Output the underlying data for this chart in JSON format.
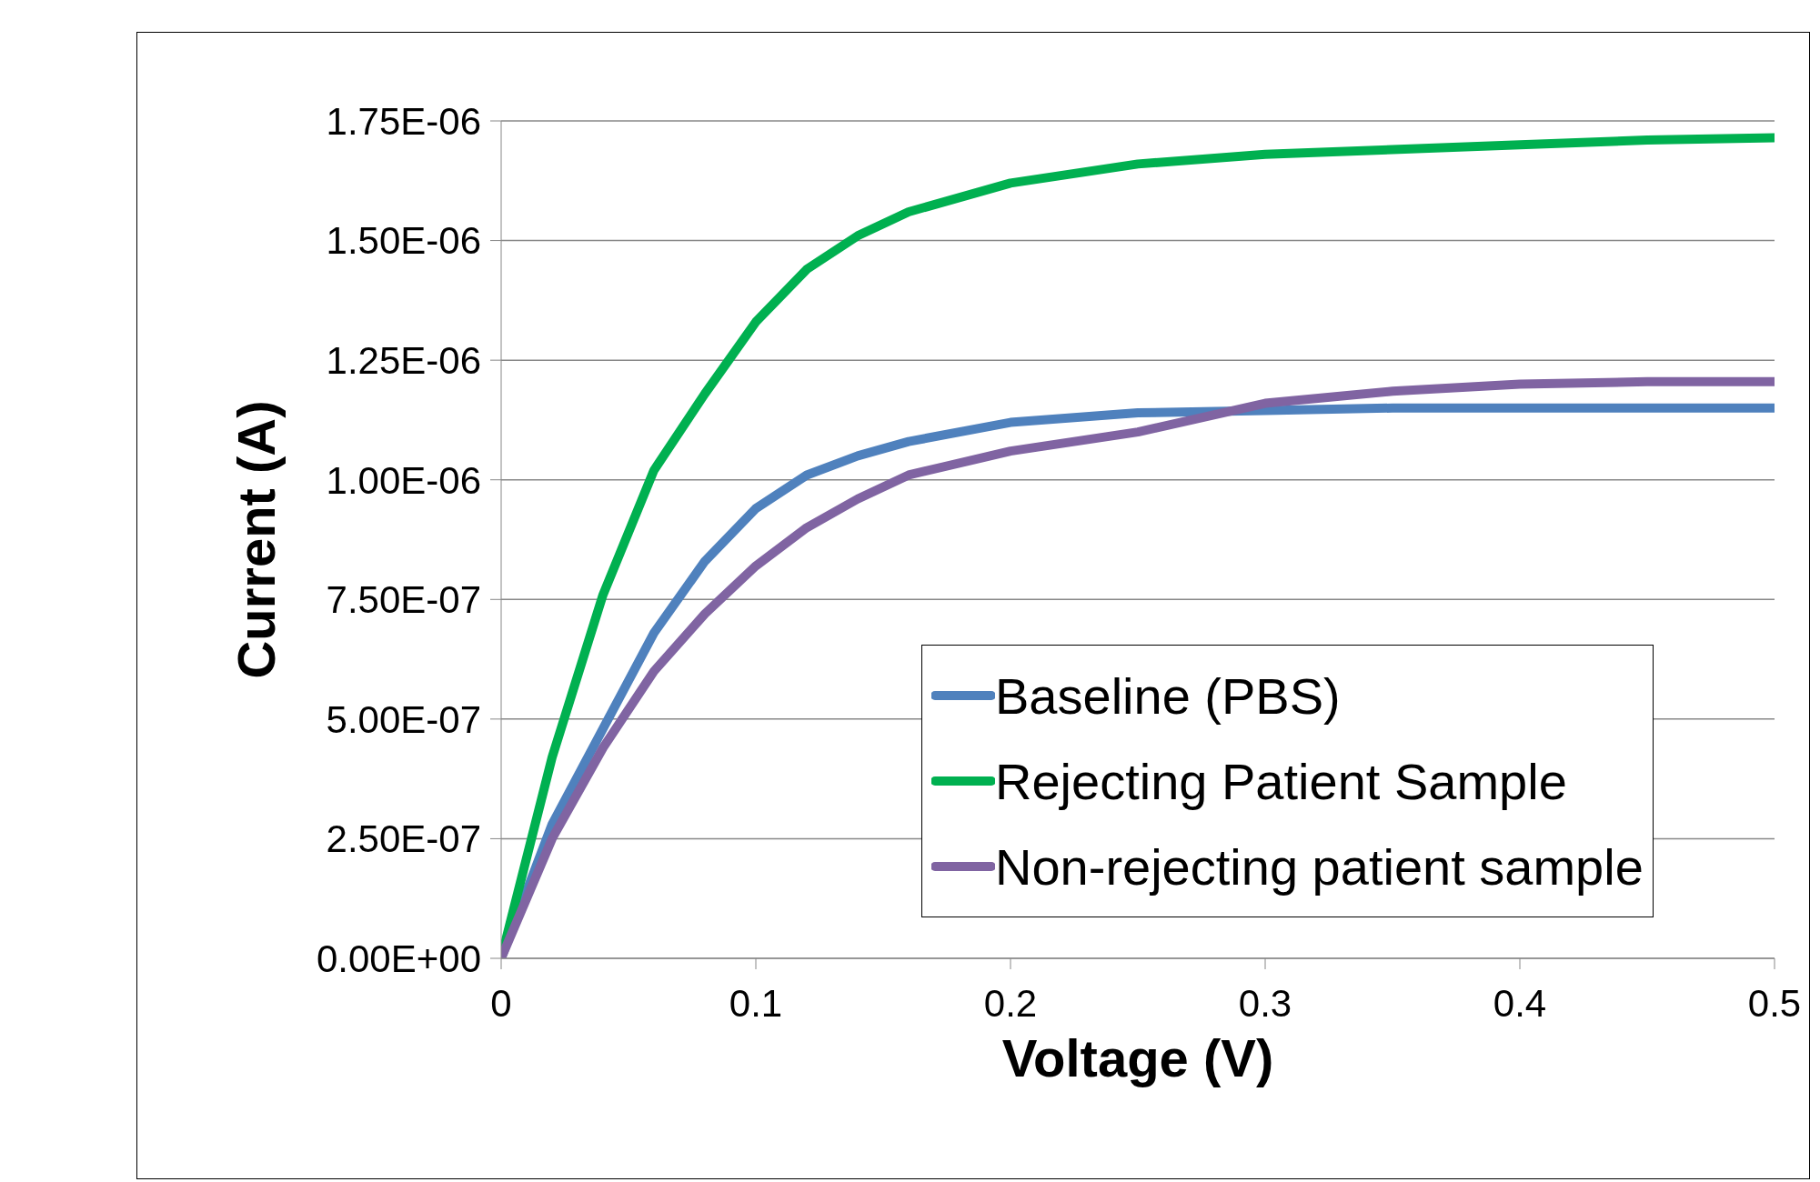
{
  "chart_data": {
    "type": "line",
    "xlabel": "Voltage (V)",
    "ylabel": "Current (A)",
    "xlim": [
      0,
      0.5
    ],
    "xticks": [
      0,
      0.1,
      0.2,
      0.3,
      0.4,
      0.5
    ],
    "ylim": [
      0,
      1.75e-06
    ],
    "yticks": [
      {
        "value": 0,
        "label": "0.00E+00"
      },
      {
        "value": 2.5e-07,
        "label": "2.50E-07"
      },
      {
        "value": 5e-07,
        "label": "5.00E-07"
      },
      {
        "value": 7.5e-07,
        "label": "7.50E-07"
      },
      {
        "value": 1e-06,
        "label": "1.00E-06"
      },
      {
        "value": 1.25e-06,
        "label": "1.25E-06"
      },
      {
        "value": 1.5e-06,
        "label": "1.50E-06"
      },
      {
        "value": 1.75e-06,
        "label": "1.75E-06"
      }
    ],
    "grid": "y",
    "legend": "bottom right",
    "marker": "none",
    "line_style": "solid",
    "x": [
      0,
      0.02,
      0.04,
      0.06,
      0.08,
      0.1,
      0.12,
      0.14,
      0.16,
      0.2,
      0.25,
      0.3,
      0.35,
      0.4,
      0.45,
      0.5
    ],
    "series": [
      {
        "name": "Baseline (PBS)",
        "color": "#4f81bd",
        "values": [
          0,
          2.8e-07,
          4.8e-07,
          6.8e-07,
          8.3e-07,
          9.4e-07,
          1.01e-06,
          1.05e-06,
          1.08e-06,
          1.12e-06,
          1.14e-06,
          1.145e-06,
          1.15e-06,
          1.15e-06,
          1.15e-06,
          1.15e-06
        ]
      },
      {
        "name": "Rejecting Patient Sample",
        "color": "#00b050",
        "values": [
          0,
          4.2e-07,
          7.6e-07,
          1.02e-06,
          1.18e-06,
          1.33e-06,
          1.44e-06,
          1.51e-06,
          1.56e-06,
          1.62e-06,
          1.66e-06,
          1.68e-06,
          1.69e-06,
          1.7e-06,
          1.71e-06,
          1.715e-06
        ]
      },
      {
        "name": "Non-rejecting patient sample",
        "color": "#8064a2",
        "values": [
          0,
          2.5e-07,
          4.4e-07,
          6e-07,
          7.2e-07,
          8.2e-07,
          9e-07,
          9.6e-07,
          1.01e-06,
          1.06e-06,
          1.1e-06,
          1.16e-06,
          1.185e-06,
          1.2e-06,
          1.205e-06,
          1.205e-06
        ]
      }
    ]
  }
}
